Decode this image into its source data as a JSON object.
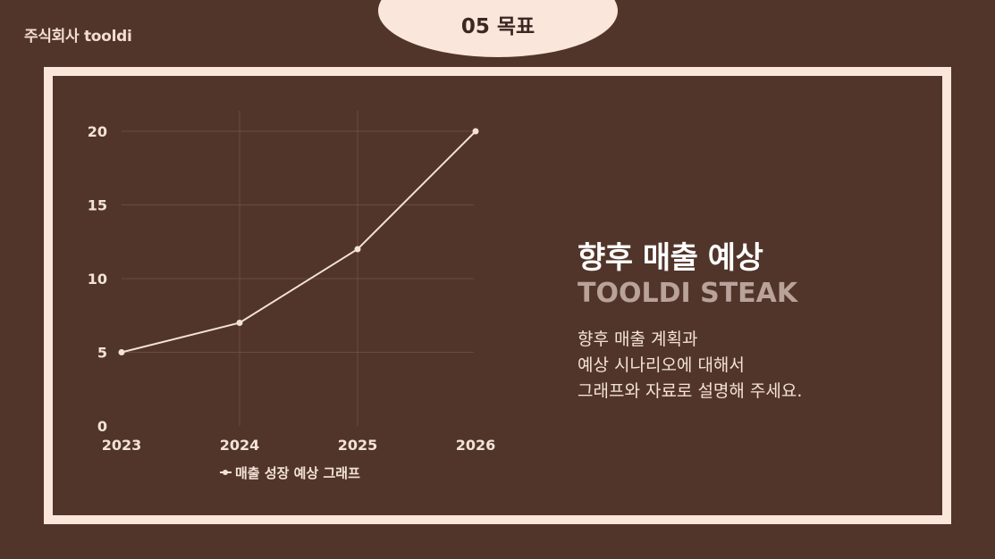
{
  "header": {
    "company": "주식회사 tooldi",
    "section_title": "05 목표"
  },
  "content": {
    "headline": "향후 매출 예상",
    "subheadline": "TOOLDI STEAK",
    "description": [
      "향후 매출 계획과",
      "예상 시나리오에 대해서",
      "그래프와 자료로 설명해 주세요."
    ]
  },
  "colors": {
    "background": "#52352a",
    "frame": "#fbe6dc",
    "line": "#f3e2d8",
    "grid": "#6a4c40"
  },
  "chart_data": {
    "type": "line",
    "x": [
      "2023",
      "2024",
      "2025",
      "2026"
    ],
    "series": [
      {
        "name": "매출 성장 예상 그래프",
        "values": [
          5,
          7,
          12,
          20
        ]
      }
    ],
    "y_ticks": [
      0,
      5,
      10,
      15,
      20
    ],
    "ylim": [
      0,
      20
    ],
    "grid": true,
    "legend": "bottom"
  }
}
